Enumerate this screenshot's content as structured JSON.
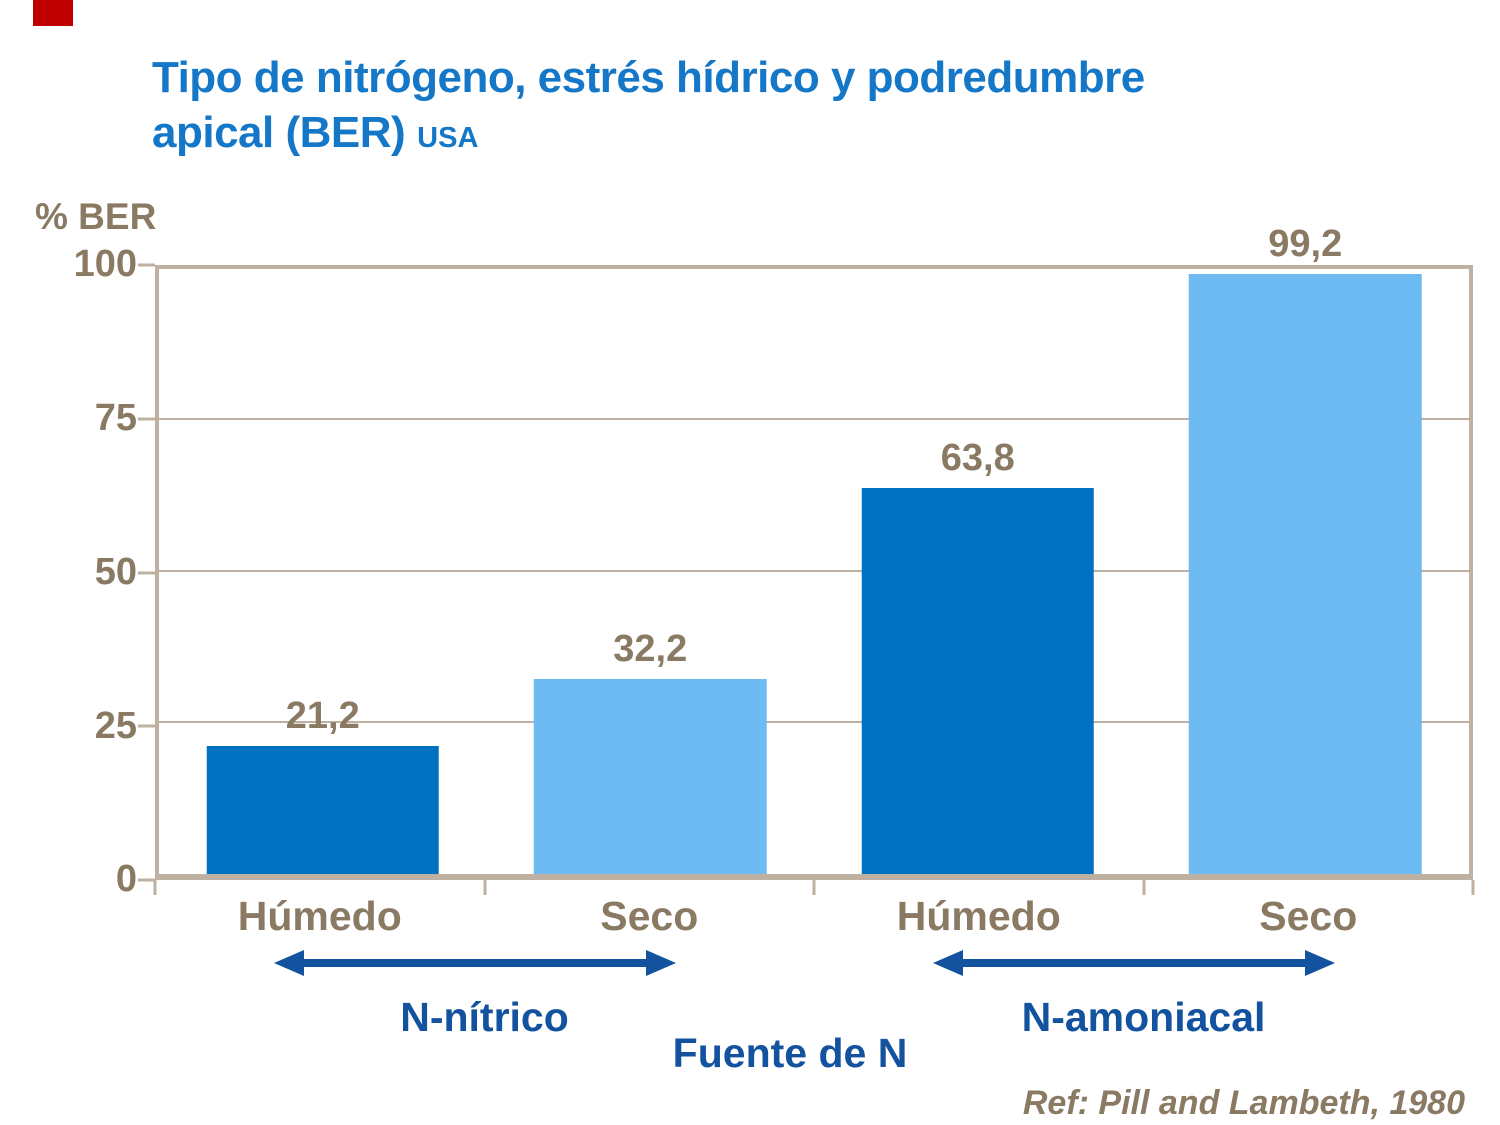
{
  "header": {
    "title_line1": "Tipo de nitrógeno, estrés hídrico y podredumbre",
    "title_line2": "apical (BER)",
    "title_suffix": "USA"
  },
  "colors": {
    "title_blue": "#1577C8",
    "bar_dark_blue": "#0070C0",
    "bar_light_blue": "#6EBBF3",
    "text_brown": "#8A7A63",
    "axis_tan": "#BFB1A2",
    "annotation_blue": "#12529E",
    "accent_red": "#C00000"
  },
  "chart_data": {
    "type": "bar",
    "title": "Tipo de nitrógeno, estrés hídrico y podredumbre apical (BER) USA",
    "ylabel": "% BER",
    "xlabel": "Fuente de N",
    "ylim": [
      0,
      100
    ],
    "yticks": [
      0,
      25,
      50,
      75,
      100
    ],
    "grid": true,
    "legend_position": "none",
    "categories": [
      "Húmedo",
      "Seco",
      "Húmedo",
      "Seco"
    ],
    "values": [
      21.2,
      32.2,
      63.8,
      99.2
    ],
    "value_labels": [
      "21,2",
      "32,2",
      "63,8",
      "99,2"
    ],
    "bar_colors": [
      "#0070C0",
      "#6EBBF3",
      "#0070C0",
      "#6EBBF3"
    ],
    "groups": [
      {
        "label": "N-nítrico",
        "categories": [
          "Húmedo",
          "Seco"
        ]
      },
      {
        "label": "N-amoniacal",
        "categories": [
          "Húmedo",
          "Seco"
        ]
      }
    ],
    "reference": "Ref: Pill and Lambeth, 1980"
  }
}
